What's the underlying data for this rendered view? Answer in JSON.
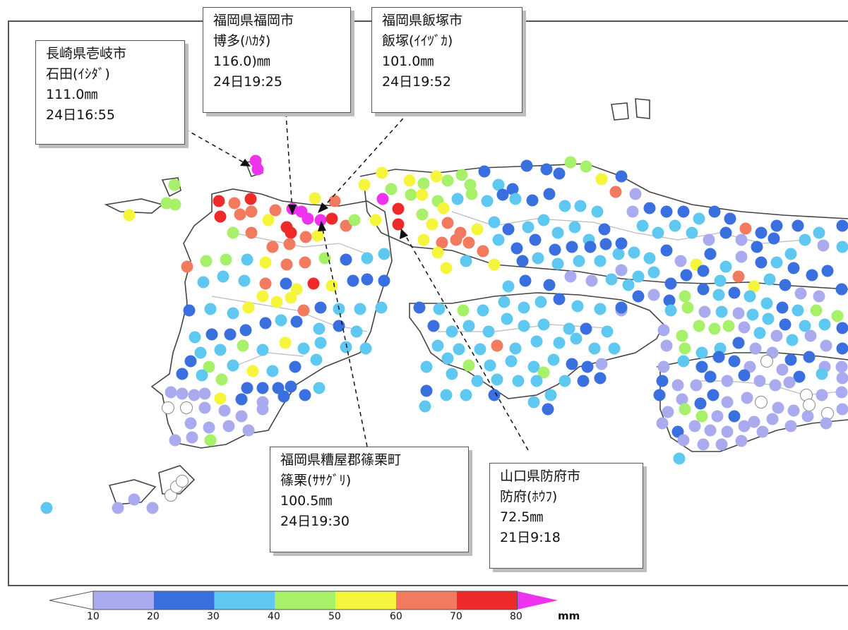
{
  "legend": {
    "labels": [
      "10",
      "20",
      "30",
      "40",
      "50",
      "60",
      "70",
      "80"
    ],
    "unit": "mm",
    "colors": [
      "#ffffff",
      "#aaaaee",
      "#3a6fe0",
      "#5ec8f0",
      "#a6f06a",
      "#f5f53c",
      "#f27a5e",
      "#ee2a2a",
      "#ee33ee"
    ]
  },
  "callouts": {
    "iki": {
      "pref": "長崎県壱岐市",
      "station": "石田(ｲｼﾀﾞ)",
      "amount": "111.0㎜",
      "time": "24日16:55"
    },
    "hakata": {
      "pref": "福岡県福岡市",
      "station": "博多(ﾊｶﾀ)",
      "amount": "116.0)㎜",
      "time": "24日19:25"
    },
    "iizuka": {
      "pref": "福岡県飯塚市",
      "station": "飯塚(ｲｲﾂﾞｶ)",
      "amount": "101.0㎜",
      "time": "24日19:52"
    },
    "sasaguri": {
      "pref": "福岡県糟屋郡篠栗町",
      "station": "篠栗(ｻｻｸﾞﾘ)",
      "amount": "100.5㎜",
      "time": "24日19:30"
    },
    "hofu": {
      "pref": "山口県防府市",
      "station": "防府(ﾎｳﾌ)",
      "amount": "72.5㎜",
      "time": "21日9:18"
    }
  }
}
